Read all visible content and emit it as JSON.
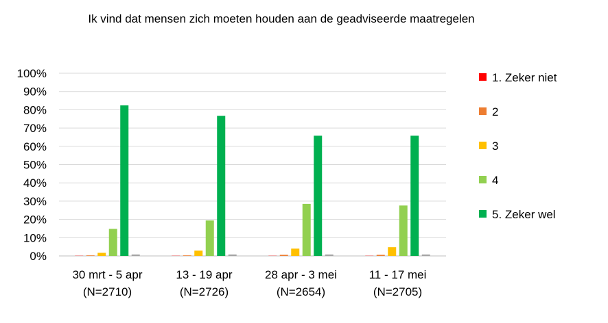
{
  "chart_data": {
    "type": "bar",
    "title": "Ik vind dat mensen zich moeten houden aan de geadviseerde maatregelen",
    "xlabel": "",
    "ylabel": "",
    "ylim": [
      0,
      100
    ],
    "y_ticks": [
      "0%",
      "10%",
      "20%",
      "30%",
      "40%",
      "50%",
      "60%",
      "70%",
      "80%",
      "90%",
      "100%"
    ],
    "grid": true,
    "legend_position": "right",
    "categories": [
      {
        "line1": "30 mrt - 5 apr",
        "line2": "(N=2710)"
      },
      {
        "line1": "13 - 19 apr",
        "line2": "(N=2726)"
      },
      {
        "line1": "28 apr - 3 mei",
        "line2": "(N=2654)"
      },
      {
        "line1": "11 - 17 mei",
        "line2": "(N=2705)"
      }
    ],
    "series": [
      {
        "name": "1. Zeker niet",
        "color": "#ff0000",
        "values": [
          0.1,
          0.1,
          0.1,
          0.1
        ]
      },
      {
        "name": "2",
        "color": "#ed7d31",
        "values": [
          0.3,
          0.3,
          0.6,
          0.6
        ]
      },
      {
        "name": "3",
        "color": "#ffc000",
        "values": [
          1.7,
          2.9,
          4.0,
          4.8
        ]
      },
      {
        "name": "4",
        "color": "#92d050",
        "values": [
          14.8,
          19.4,
          28.5,
          27.6
        ]
      },
      {
        "name": "5. Zeker wel",
        "color": "#00b050",
        "values": [
          82.4,
          76.7,
          65.8,
          65.8
        ]
      },
      {
        "name": "",
        "color": "#a5a5a5",
        "values": [
          0.8,
          0.8,
          0.8,
          0.8
        ]
      }
    ]
  }
}
